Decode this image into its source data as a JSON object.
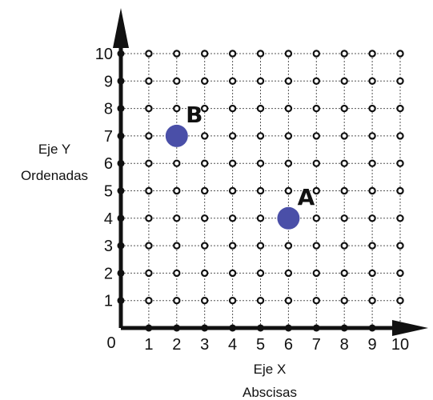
{
  "chart_data": {
    "type": "scatter",
    "title": "",
    "xlim": [
      0,
      10
    ],
    "ylim": [
      0,
      10
    ],
    "x_ticks": [
      1,
      2,
      3,
      4,
      5,
      6,
      7,
      8,
      9,
      10
    ],
    "y_ticks": [
      1,
      2,
      3,
      4,
      5,
      6,
      7,
      8,
      9,
      10
    ],
    "origin_label": "0",
    "grid": true,
    "grid_style": "dotted",
    "x_axis_title": [
      "Eje X",
      "Abscisas"
    ],
    "y_axis_title": [
      "Eje Y",
      "Ordenadas"
    ],
    "series": [
      {
        "points": [
          {
            "label": "A",
            "x": 6,
            "y": 4
          },
          {
            "label": "B",
            "x": 2,
            "y": 7
          }
        ]
      }
    ],
    "colors": {
      "point": "#4a4fa8",
      "axis": "#111111",
      "grid": "#555555",
      "node": "#111111"
    }
  }
}
